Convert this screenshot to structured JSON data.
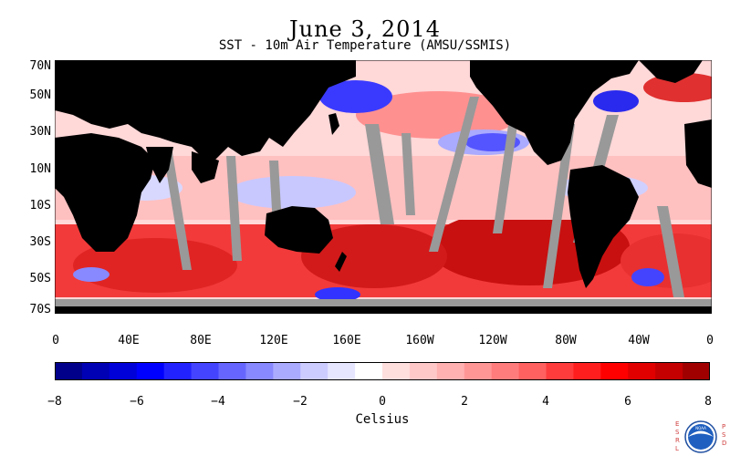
{
  "header": {
    "title": "June 3, 2014",
    "subtitle": "SST - 10m Air Temperature (AMSU/SSMIS)"
  },
  "map": {
    "y_ticks": [
      "70N",
      "50N",
      "30N",
      "10N",
      "10S",
      "30S",
      "50S",
      "70S"
    ],
    "x_ticks": [
      "0",
      "40E",
      "80E",
      "120E",
      "160E",
      "160W",
      "120W",
      "80W",
      "40W",
      "0"
    ],
    "land_color": "#000000",
    "missing_color": "#999999"
  },
  "colorbar": {
    "title": "Celsius",
    "ticks": [
      "−8",
      "−6",
      "−4",
      "−2",
      "0",
      "2",
      "4",
      "6",
      "8"
    ],
    "range": [
      -8,
      8
    ],
    "colors": [
      "#00008b",
      "#0000b4",
      "#0000d8",
      "#0000ff",
      "#2222ff",
      "#4444ff",
      "#6666ff",
      "#8888ff",
      "#aaaaff",
      "#ccccff",
      "#e6e6ff",
      "#ffffff",
      "#ffdede",
      "#ffc8c8",
      "#ffb0b0",
      "#ff9696",
      "#ff7c7c",
      "#ff6060",
      "#ff3c3c",
      "#ff1e1e",
      "#ff0000",
      "#e00000",
      "#c40000",
      "#a00000"
    ]
  },
  "logo": {
    "left_text": "ESRL",
    "right_text": "PSD",
    "center_text": "NOAA"
  }
}
